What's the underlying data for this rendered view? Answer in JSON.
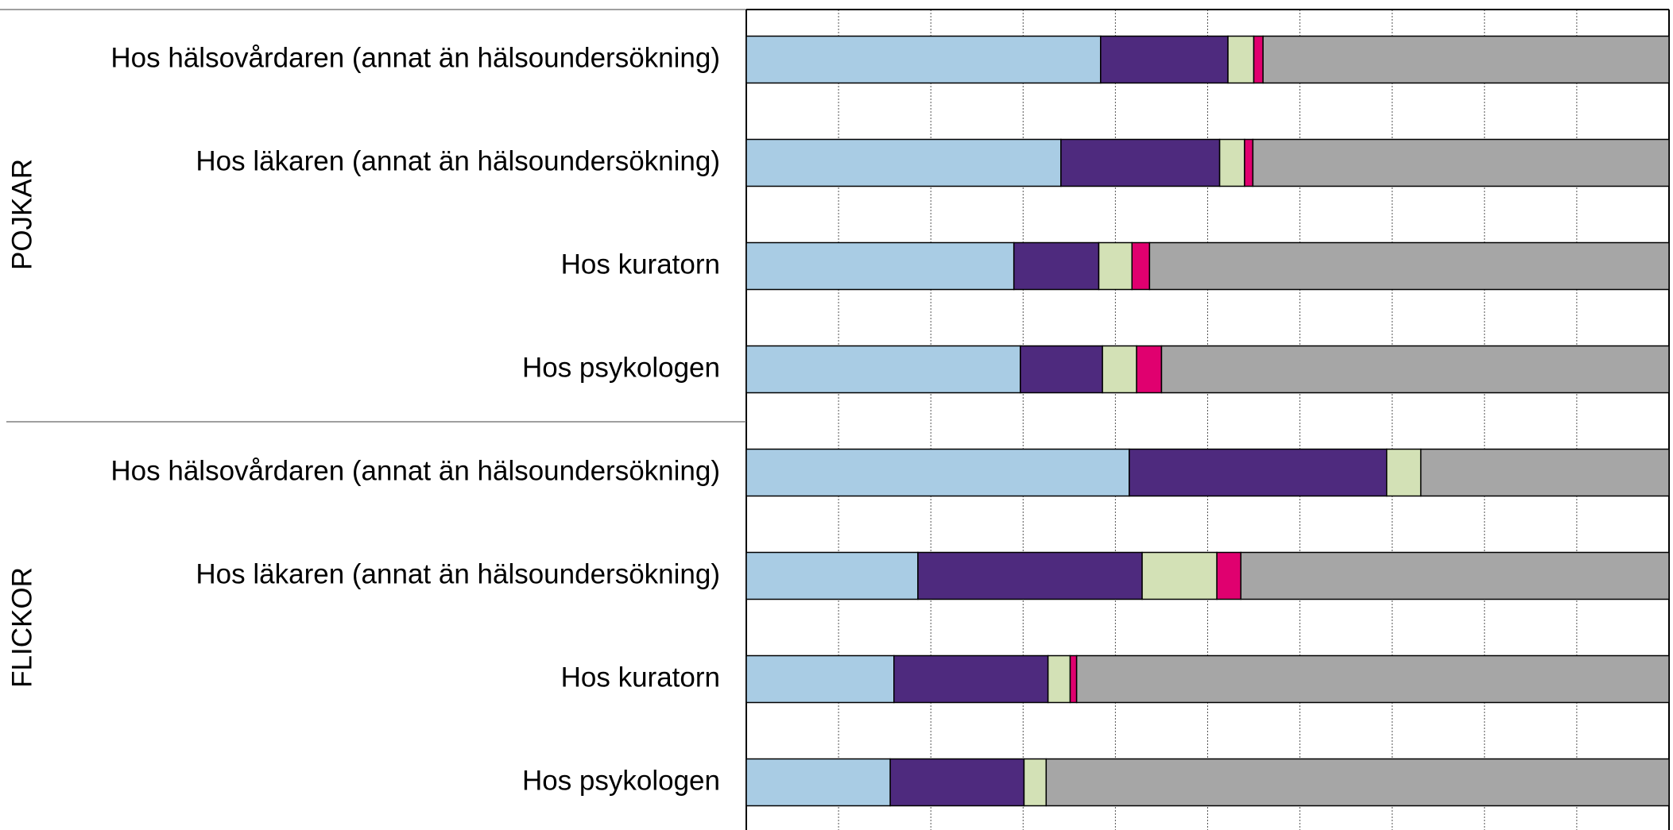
{
  "chart_data": {
    "type": "stacked_barh",
    "xlim": [
      0,
      100
    ],
    "xticks": [
      0,
      10,
      20,
      30,
      40,
      50,
      60,
      70,
      80,
      90,
      100
    ],
    "show_tick_labels": false,
    "grid": true,
    "groups": [
      {
        "label": "POJKAR",
        "size": 4
      },
      {
        "label": "FLICKOR",
        "size": 4
      }
    ],
    "categories": [
      "Hos hälsovårdaren (annat än hälsoundersökning)",
      "Hos läkaren (annat än hälsoundersökning)",
      "Hos kuratorn",
      "Hos psykologen",
      "Hos hälsovårdaren (annat än hälsoundersökning)",
      "Hos läkaren (annat än hälsoundersökning)",
      "Hos kuratorn",
      "Hos psykologen"
    ],
    "series": [
      {
        "color": "#a9cce4",
        "values": [
          38.4,
          34.1,
          29.0,
          29.7,
          41.5,
          18.6,
          16.0,
          15.6
        ]
      },
      {
        "color": "#4e2a7e",
        "values": [
          13.8,
          17.2,
          9.2,
          8.9,
          27.9,
          24.3,
          16.7,
          14.5
        ]
      },
      {
        "color": "#d3e1b6",
        "values": [
          2.8,
          2.7,
          3.6,
          3.7,
          3.7,
          8.1,
          2.4,
          2.4
        ]
      },
      {
        "color": "#e0006f",
        "values": [
          1.0,
          0.9,
          1.9,
          2.7,
          0,
          2.6,
          0.7,
          0
        ]
      },
      {
        "color": "#a6a6a6",
        "values": [
          44.0,
          45.1,
          56.3,
          55.0,
          26.9,
          46.4,
          64.2,
          67.5
        ]
      }
    ]
  }
}
